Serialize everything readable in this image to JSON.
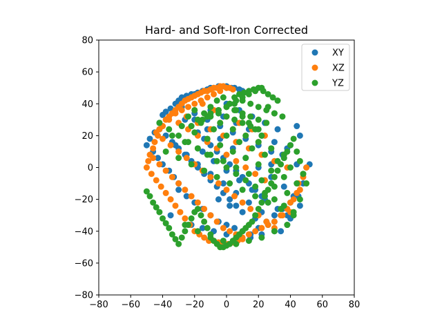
{
  "chart_data": {
    "type": "scatter",
    "title": "Hard- and Soft-Iron Corrected",
    "xlabel": "",
    "ylabel": "",
    "xlim": [
      -80,
      80
    ],
    "ylim": [
      -80,
      80
    ],
    "xticks": [
      -80,
      -60,
      -40,
      -20,
      0,
      20,
      40,
      60,
      80
    ],
    "yticks": [
      -80,
      -60,
      -40,
      -20,
      0,
      20,
      40,
      60,
      80
    ],
    "grid": false,
    "legend_position": "top-right",
    "aspect": "equal",
    "series": [
      {
        "name": "XY",
        "color": "#1f77b4",
        "x": [
          -50,
          -48,
          -45,
          -42,
          -40,
          -38,
          -35,
          -32,
          -30,
          -28,
          -25,
          -22,
          -20,
          -18,
          -15,
          -12,
          -10,
          -8,
          -5,
          -2,
          0,
          3,
          5,
          8,
          10,
          -46,
          -43,
          -40,
          -36,
          -33,
          -30,
          -26,
          -22,
          -18,
          -14,
          -10,
          -6,
          -2,
          2,
          6,
          10,
          14,
          18,
          22,
          26,
          -38,
          -34,
          -30,
          -26,
          -22,
          -18,
          -14,
          -10,
          -6,
          -2,
          2,
          6,
          -30,
          -25,
          -20,
          -15,
          -10,
          -5,
          0,
          5,
          10,
          15,
          20,
          25,
          30,
          35,
          40,
          45,
          48,
          50,
          52,
          -28,
          -20,
          -12,
          -4,
          4,
          12,
          20,
          28,
          36,
          44,
          -35,
          -22,
          -15,
          -8,
          0,
          8,
          15,
          22,
          30,
          38,
          -42,
          -38,
          -32,
          -25,
          -18,
          -10,
          -2,
          6,
          14,
          22,
          30,
          38,
          46,
          -20,
          -12,
          -4,
          4,
          12,
          20,
          28,
          36,
          42,
          -15,
          -8,
          0,
          8,
          16,
          24,
          32,
          40,
          -10,
          -2,
          6,
          14,
          22,
          30,
          38,
          -5,
          2,
          10,
          18,
          26,
          34,
          0,
          8,
          16,
          24,
          32,
          44,
          46,
          40,
          35,
          28
        ],
        "y": [
          14,
          18,
          22,
          28,
          33,
          35,
          37,
          40,
          42,
          44,
          45,
          46,
          46,
          47,
          48,
          49,
          50,
          50,
          51,
          51,
          51,
          50,
          50,
          49,
          48,
          10,
          6,
          2,
          -2,
          -6,
          -10,
          30,
          26,
          22,
          18,
          14,
          10,
          6,
          2,
          -2,
          -6,
          -10,
          -14,
          -18,
          -22,
          20,
          16,
          12,
          8,
          4,
          0,
          -4,
          -8,
          -12,
          -16,
          -20,
          -24,
          -14,
          -18,
          -22,
          -26,
          -30,
          -34,
          -36,
          -38,
          -40,
          -42,
          -38,
          -34,
          -30,
          -26,
          -22,
          -18,
          -10,
          0,
          2,
          38,
          34,
          30,
          26,
          22,
          18,
          14,
          10,
          6,
          2,
          -30,
          -36,
          -38,
          -40,
          -42,
          -44,
          -44,
          -42,
          -40,
          -36,
          24,
          20,
          14,
          8,
          2,
          -4,
          -10,
          -16,
          -22,
          -28,
          -34,
          -30,
          -24,
          30,
          24,
          18,
          12,
          6,
          0,
          -6,
          -12,
          -18,
          10,
          4,
          -2,
          -8,
          -14,
          -20,
          -26,
          -32,
          36,
          32,
          28,
          24,
          20,
          16,
          12,
          -20,
          -24,
          -28,
          -32,
          -36,
          -40,
          40,
          36,
          32,
          28,
          24,
          26,
          20,
          14,
          8,
          2
        ]
      },
      {
        "name": "XZ",
        "color": "#ff7f0e",
        "x": [
          -50,
          -49,
          -48,
          -46,
          -45,
          -43,
          -42,
          -40,
          -38,
          -36,
          -34,
          -32,
          -30,
          -28,
          -26,
          -24,
          -22,
          -20,
          -18,
          -16,
          -14,
          -12,
          -10,
          -8,
          -6,
          -4,
          -2,
          0,
          2,
          4,
          -47,
          -44,
          -41,
          -38,
          -35,
          -32,
          -29,
          -26,
          -23,
          -20,
          -17,
          -14,
          -11,
          -8,
          -5,
          -2,
          1,
          4,
          7,
          10,
          -44,
          -40,
          -36,
          -32,
          -28,
          -24,
          -20,
          -16,
          -12,
          -8,
          -4,
          0,
          -46,
          -42,
          -38,
          -34,
          -30,
          -26,
          -22,
          -18,
          -14,
          -10,
          -6,
          -2,
          2,
          6,
          10,
          14,
          18,
          22,
          26,
          30,
          34,
          38,
          42,
          46,
          48,
          50,
          44,
          40,
          -40,
          -35,
          -30,
          -25,
          -20,
          -15,
          -10,
          -5,
          0,
          5,
          10,
          15,
          20,
          25,
          30,
          35,
          40,
          45,
          -30,
          -24,
          -18,
          -12,
          -6,
          0,
          6,
          12,
          18,
          24,
          -25,
          -18,
          -10,
          -2,
          6,
          14,
          22,
          30,
          38,
          -20,
          -12,
          -4,
          4,
          12,
          20,
          28,
          36,
          -15,
          -8,
          0,
          8,
          16,
          24
        ],
        "y": [
          0,
          4,
          8,
          12,
          16,
          20,
          24,
          26,
          30,
          32,
          34,
          36,
          38,
          40,
          42,
          43,
          44,
          45,
          46,
          47,
          48,
          48,
          49,
          50,
          50,
          51,
          51,
          50,
          50,
          49,
          -4,
          -8,
          -12,
          -16,
          -20,
          -24,
          -28,
          -32,
          -36,
          -40,
          -42,
          -44,
          -46,
          -46,
          -47,
          -48,
          -48,
          -47,
          -46,
          -45,
          22,
          26,
          30,
          34,
          36,
          38,
          40,
          42,
          44,
          46,
          48,
          50,
          6,
          2,
          -2,
          -6,
          -10,
          -14,
          -18,
          -22,
          -26,
          -30,
          -34,
          -38,
          -40,
          -42,
          -44,
          -42,
          -40,
          -38,
          -36,
          -34,
          -30,
          -26,
          -20,
          -14,
          -6,
          0,
          -16,
          -28,
          18,
          14,
          10,
          6,
          2,
          -2,
          -6,
          -10,
          -14,
          -18,
          -22,
          -26,
          -30,
          -34,
          -38,
          -30,
          -22,
          -10,
          28,
          24,
          20,
          16,
          12,
          8,
          4,
          0,
          -4,
          -8,
          32,
          28,
          24,
          20,
          16,
          12,
          8,
          4,
          0,
          36,
          32,
          28,
          24,
          20,
          16,
          12,
          8,
          40,
          36,
          32,
          28,
          24,
          20
        ]
      },
      {
        "name": "YZ",
        "color": "#2ca02c",
        "x": [
          -50,
          -48,
          -46,
          -44,
          -42,
          -40,
          -38,
          -36,
          -34,
          -32,
          -30,
          -28,
          -26,
          -24,
          -22,
          -20,
          -18,
          -16,
          -14,
          -12,
          -10,
          -8,
          -6,
          -4,
          -2,
          0,
          2,
          4,
          6,
          8,
          10,
          12,
          14,
          16,
          18,
          20,
          22,
          24,
          26,
          28,
          30,
          32,
          34,
          36,
          38,
          40,
          42,
          44,
          46,
          48,
          50,
          5,
          8,
          11,
          14,
          17,
          20,
          23,
          26,
          29,
          32,
          2,
          6,
          10,
          14,
          18,
          22,
          26,
          30,
          -5,
          0,
          5,
          10,
          15,
          20,
          25,
          30,
          35,
          -10,
          -5,
          0,
          5,
          10,
          15,
          20,
          25,
          -15,
          -10,
          -5,
          0,
          5,
          10,
          15,
          20,
          -42,
          -36,
          -30,
          -24,
          -18,
          -12,
          -6,
          0,
          6,
          12,
          18,
          24,
          30,
          36,
          42,
          -38,
          -30,
          -22,
          -14,
          -6,
          2,
          10,
          18,
          26,
          34,
          42,
          -34,
          -26,
          -18,
          -10,
          -2,
          6,
          14,
          22,
          30,
          38,
          46,
          -28,
          -20,
          -12,
          -4,
          4,
          12,
          20,
          28,
          36,
          44,
          -24,
          -16,
          -8,
          0,
          8,
          16,
          24,
          32,
          40,
          48,
          -20,
          -12,
          -4,
          4,
          12,
          20,
          28,
          36,
          -26,
          -18,
          -10,
          -2,
          6,
          14,
          22,
          30,
          38,
          22,
          18,
          14,
          10,
          6,
          2,
          -2,
          -6,
          -10,
          -14,
          -18,
          -22
        ],
        "y": [
          -15,
          -18,
          -22,
          -25,
          -28,
          -32,
          -35,
          -38,
          -42,
          -45,
          -48,
          -44,
          -40,
          -36,
          -32,
          -28,
          -26,
          -30,
          -34,
          -38,
          -42,
          -46,
          -48,
          -50,
          -50,
          -49,
          -48,
          -46,
          -44,
          -42,
          -40,
          -38,
          -36,
          -34,
          -30,
          -26,
          -22,
          -18,
          -14,
          -10,
          -6,
          -2,
          2,
          6,
          10,
          14,
          18,
          10,
          4,
          -4,
          -10,
          44,
          46,
          47,
          48,
          49,
          50,
          48,
          46,
          44,
          42,
          40,
          42,
          44,
          46,
          48,
          50,
          38,
          34,
          36,
          38,
          40,
          42,
          40,
          38,
          36,
          34,
          32,
          34,
          36,
          38,
          36,
          34,
          32,
          30,
          28,
          30,
          32,
          34,
          32,
          30,
          28,
          26,
          24,
          28,
          24,
          20,
          16,
          12,
          8,
          4,
          0,
          -4,
          -8,
          -12,
          -16,
          -20,
          -24,
          -28,
          10,
          6,
          2,
          -2,
          -6,
          -10,
          -14,
          -18,
          -22,
          -26,
          -30,
          20,
          16,
          12,
          8,
          4,
          0,
          -4,
          -8,
          -12,
          -16,
          -20,
          26,
          22,
          18,
          14,
          10,
          6,
          2,
          -2,
          -6,
          -10,
          32,
          28,
          24,
          20,
          16,
          12,
          8,
          4,
          0,
          -4,
          36,
          32,
          28,
          24,
          20,
          16,
          12,
          8,
          -36,
          -40,
          -44,
          -46,
          -48,
          -46,
          -44,
          -40,
          -36,
          20,
          24,
          28,
          32,
          36,
          40,
          44,
          42,
          38,
          34,
          30,
          26
        ]
      }
    ]
  }
}
